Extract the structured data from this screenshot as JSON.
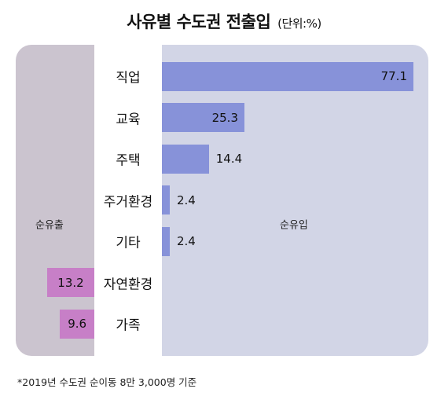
{
  "title": "사유별 수도권 전출입",
  "unit": "(단위:%)",
  "inflow_label": "순유입",
  "outflow_label": "순유출",
  "footnote": "*2019년 수도권 순이동 8만 3,000명 기준",
  "colors": {
    "inflow_bar": "#8792d9",
    "outflow_bar": "#c77fc7",
    "inflow_panel": "#d2d5e6",
    "outflow_panel": "#cbc4cf"
  },
  "chart_data": {
    "type": "bar",
    "orientation": "horizontal diverging",
    "title": "사유별 수도권 전출입",
    "unit": "(단위:%)",
    "categories": [
      "직업",
      "교육",
      "주택",
      "주거환경",
      "기타",
      "자연환경",
      "가족"
    ],
    "series": [
      {
        "name": "순유입",
        "values": [
          77.1,
          25.3,
          14.4,
          2.4,
          2.4,
          null,
          null
        ]
      },
      {
        "name": "순유출",
        "values": [
          null,
          null,
          null,
          null,
          null,
          13.2,
          9.6
        ]
      }
    ],
    "value_labels": {
      "순유입": [
        "77.1",
        "25.3",
        "14.4",
        "2.4",
        "2.4",
        null,
        null
      ],
      "순유출": [
        null,
        null,
        null,
        null,
        null,
        "13.2",
        "9.6"
      ]
    }
  }
}
